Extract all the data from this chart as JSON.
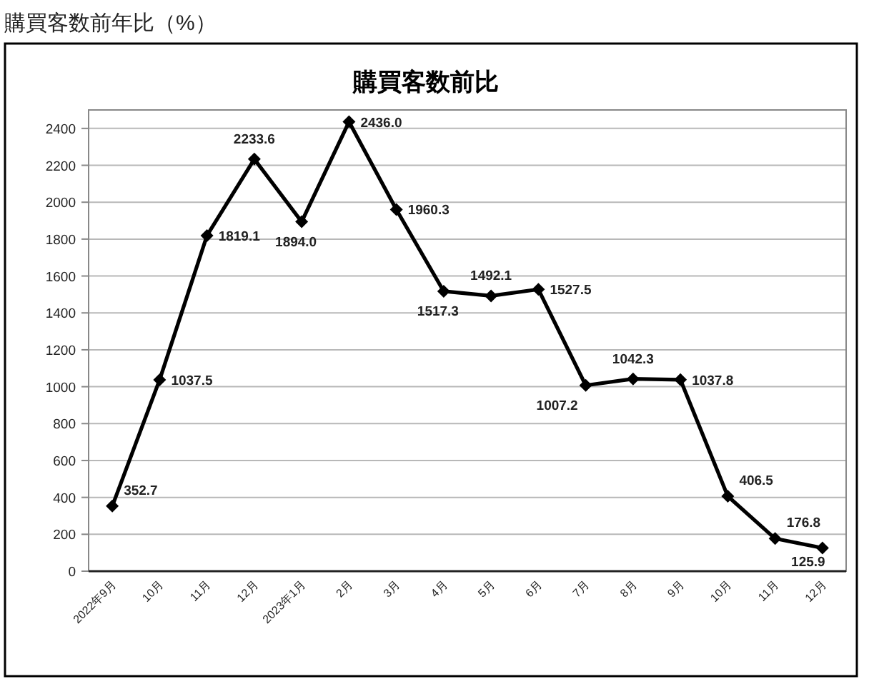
{
  "chart_data": {
    "type": "line",
    "title": "購買客数前年比（%）",
    "subtitle": "購買客数前比",
    "categories": [
      "2022年9月",
      "10月",
      "11月",
      "12月",
      "2023年1月",
      "2月",
      "3月",
      "4月",
      "5月",
      "6月",
      "7月",
      "8月",
      "9月",
      "10月",
      "11月",
      "12月"
    ],
    "values": [
      352.7,
      1037.5,
      1819.1,
      2233.6,
      1894.0,
      2436.0,
      1960.3,
      1517.3,
      1492.1,
      1527.5,
      1007.2,
      1042.3,
      1037.8,
      406.5,
      176.8,
      125.9
    ],
    "value_labels": [
      "352.7",
      "1037.5",
      "1819.1",
      "2233.6",
      "1894.0",
      "2436.0",
      "1960.3",
      "1517.3",
      "1492.1",
      "1527.5",
      "1007.2",
      "1042.3",
      "1037.8",
      "406.5",
      "176.8",
      "125.9"
    ],
    "color": "#000000",
    "ylim": [
      0,
      2500
    ],
    "yticks": [
      0,
      200,
      400,
      600,
      800,
      1000,
      1200,
      1400,
      1600,
      1800,
      2000,
      2200,
      2400
    ],
    "grid": "y",
    "marker": "diamond",
    "line_style": "solid"
  }
}
